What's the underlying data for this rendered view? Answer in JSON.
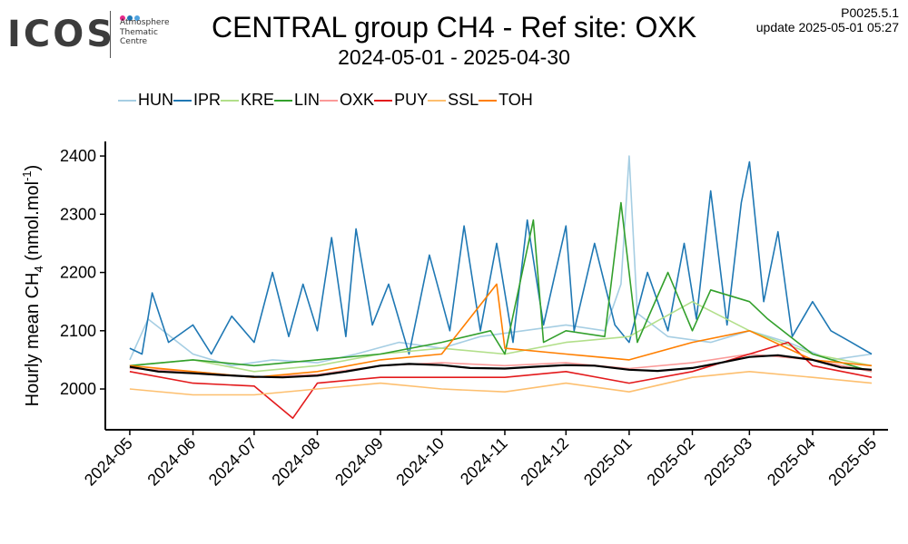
{
  "logo": {
    "text": "ICOS",
    "subtitle_lines": [
      "Atmosphere",
      "Thematic",
      "Centre"
    ],
    "dot_colors": [
      "#e7298a",
      "#1f78b4",
      "#4fa3e0"
    ]
  },
  "header": {
    "title": "CENTRAL group CH4 - Ref site: OXK",
    "subtitle": "2024-05-01 - 2025-04-30",
    "version": "P0025.5.1",
    "update": "update  2025-05-01 05:27"
  },
  "chart_data": {
    "type": "line",
    "title": "CENTRAL group CH4 - Ref site: OXK",
    "subtitle": "2024-05-01 - 2025-04-30",
    "ylabel": "Hourly mean CH4 (nmol.mol-1)",
    "ylabel_parts": {
      "pre": "Hourly mean CH",
      "sub": "4",
      "mid": " (nmol.mol",
      "sup": "-1",
      "post": ")"
    },
    "ylim": [
      1930,
      2425
    ],
    "yticks": [
      2000,
      2100,
      2200,
      2300,
      2400
    ],
    "xlim": [
      "2024-04-19",
      "2025-05-08"
    ],
    "xticks": [
      "2024-05",
      "2024-06",
      "2024-07",
      "2024-08",
      "2024-09",
      "2024-10",
      "2024-11",
      "2024-12",
      "2025-01",
      "2025-02",
      "2025-03",
      "2025-04",
      "2025-05"
    ],
    "xtick_dates": [
      "2024-05-01",
      "2024-06-01",
      "2024-07-01",
      "2024-08-01",
      "2024-09-01",
      "2024-10-01",
      "2024-11-01",
      "2024-12-01",
      "2025-01-01",
      "2025-02-01",
      "2025-03-01",
      "2025-04-01",
      "2025-05-01"
    ],
    "legend_position": "top-left, above plot",
    "grid": false,
    "series": [
      {
        "name": "HUN",
        "color": "#a6cee3",
        "x": [
          "2024-05-01",
          "2024-05-10",
          "2024-06-01",
          "2024-06-20",
          "2024-07-10",
          "2024-08-01",
          "2024-08-20",
          "2024-09-10",
          "2024-10-01",
          "2024-10-20",
          "2024-11-10",
          "2024-12-01",
          "2024-12-20",
          "2024-12-28",
          "2025-01-01",
          "2025-01-05",
          "2025-01-20",
          "2025-02-10",
          "2025-03-01",
          "2025-03-20",
          "2025-04-10",
          "2025-04-30"
        ],
        "y": [
          2050,
          2120,
          2060,
          2040,
          2050,
          2045,
          2060,
          2080,
          2070,
          2090,
          2100,
          2110,
          2100,
          2180,
          2400,
          2130,
          2090,
          2080,
          2100,
          2080,
          2050,
          2060
        ]
      },
      {
        "name": "IPR",
        "color": "#1f78b4",
        "x": [
          "2024-05-01",
          "2024-05-07",
          "2024-05-12",
          "2024-05-20",
          "2024-06-01",
          "2024-06-10",
          "2024-06-20",
          "2024-07-01",
          "2024-07-10",
          "2024-07-18",
          "2024-07-25",
          "2024-08-01",
          "2024-08-08",
          "2024-08-15",
          "2024-08-20",
          "2024-08-28",
          "2024-09-05",
          "2024-09-15",
          "2024-09-25",
          "2024-10-05",
          "2024-10-12",
          "2024-10-20",
          "2024-10-28",
          "2024-11-05",
          "2024-11-12",
          "2024-11-20",
          "2024-12-01",
          "2024-12-05",
          "2024-12-15",
          "2024-12-25",
          "2025-01-01",
          "2025-01-10",
          "2025-01-20",
          "2025-01-28",
          "2025-02-03",
          "2025-02-10",
          "2025-02-18",
          "2025-02-25",
          "2025-03-01",
          "2025-03-08",
          "2025-03-15",
          "2025-03-22",
          "2025-04-01",
          "2025-04-10",
          "2025-04-20",
          "2025-04-30"
        ],
        "y": [
          2070,
          2060,
          2165,
          2080,
          2110,
          2060,
          2125,
          2080,
          2200,
          2090,
          2180,
          2100,
          2260,
          2090,
          2275,
          2110,
          2180,
          2060,
          2230,
          2100,
          2280,
          2100,
          2250,
          2080,
          2290,
          2110,
          2280,
          2100,
          2250,
          2110,
          2080,
          2200,
          2100,
          2250,
          2120,
          2340,
          2110,
          2320,
          2390,
          2150,
          2270,
          2090,
          2150,
          2100,
          2080,
          2060
        ]
      },
      {
        "name": "KRE",
        "color": "#b2df8a",
        "x": [
          "2024-05-01",
          "2024-06-01",
          "2024-07-01",
          "2024-08-01",
          "2024-09-01",
          "2024-10-01",
          "2024-11-01",
          "2024-12-01",
          "2025-01-01",
          "2025-02-01",
          "2025-03-01",
          "2025-04-01",
          "2025-04-30"
        ],
        "y": [
          2040,
          2050,
          2030,
          2040,
          2060,
          2070,
          2060,
          2080,
          2090,
          2150,
          2100,
          2060,
          2040
        ]
      },
      {
        "name": "LIN",
        "color": "#33a02c",
        "x": [
          "2024-05-01",
          "2024-06-01",
          "2024-07-01",
          "2024-08-01",
          "2024-09-01",
          "2024-10-01",
          "2024-10-25",
          "2024-11-01",
          "2024-11-15",
          "2024-11-20",
          "2024-12-01",
          "2024-12-20",
          "2024-12-28",
          "2025-01-05",
          "2025-01-20",
          "2025-02-01",
          "2025-02-10",
          "2025-03-01",
          "2025-03-10",
          "2025-04-01",
          "2025-04-30"
        ],
        "y": [
          2040,
          2050,
          2040,
          2050,
          2060,
          2080,
          2100,
          2060,
          2290,
          2080,
          2100,
          2090,
          2320,
          2080,
          2200,
          2100,
          2170,
          2150,
          2120,
          2060,
          2030
        ]
      },
      {
        "name": "OXK",
        "color": "#fb9a99",
        "x": [
          "2024-05-01",
          "2024-06-01",
          "2024-07-01",
          "2024-08-01",
          "2024-09-01",
          "2024-10-01",
          "2024-11-01",
          "2024-12-01",
          "2025-01-01",
          "2025-02-01",
          "2025-03-01",
          "2025-04-01",
          "2025-04-30"
        ],
        "y": [
          2035,
          2030,
          2020,
          2025,
          2040,
          2045,
          2040,
          2045,
          2035,
          2045,
          2060,
          2050,
          2030
        ]
      },
      {
        "name": "PUY",
        "color": "#e31a1c",
        "x": [
          "2024-05-01",
          "2024-06-01",
          "2024-07-01",
          "2024-07-20",
          "2024-08-01",
          "2024-09-01",
          "2024-10-01",
          "2024-11-01",
          "2024-12-01",
          "2025-01-01",
          "2025-02-01",
          "2025-03-01",
          "2025-03-20",
          "2025-04-01",
          "2025-04-30"
        ],
        "y": [
          2030,
          2010,
          2005,
          1950,
          2010,
          2020,
          2020,
          2020,
          2030,
          2010,
          2030,
          2060,
          2080,
          2040,
          2020
        ]
      },
      {
        "name": "SSL",
        "color": "#fdbf6f",
        "x": [
          "2024-05-01",
          "2024-06-01",
          "2024-07-01",
          "2024-08-01",
          "2024-09-01",
          "2024-10-01",
          "2024-11-01",
          "2024-12-01",
          "2025-01-01",
          "2025-02-01",
          "2025-03-01",
          "2025-04-01",
          "2025-04-30"
        ],
        "y": [
          2000,
          1990,
          1990,
          2000,
          2010,
          2000,
          1995,
          2010,
          1995,
          2020,
          2030,
          2020,
          2010
        ]
      },
      {
        "name": "TOH",
        "color": "#ff7f00",
        "x": [
          "2024-05-01",
          "2024-06-01",
          "2024-07-01",
          "2024-08-01",
          "2024-09-01",
          "2024-10-01",
          "2024-10-28",
          "2024-11-01",
          "2024-12-01",
          "2025-01-01",
          "2025-02-01",
          "2025-03-01",
          "2025-04-01",
          "2025-04-30"
        ],
        "y": [
          2040,
          2030,
          2020,
          2030,
          2050,
          2060,
          2180,
          2070,
          2060,
          2050,
          2080,
          2100,
          2050,
          2040
        ]
      },
      {
        "name": "",
        "color": "#000000",
        "style": "smooth",
        "x": [
          "2024-05-01",
          "2024-05-15",
          "2024-06-01",
          "2024-06-15",
          "2024-07-01",
          "2024-07-15",
          "2024-08-01",
          "2024-08-15",
          "2024-09-01",
          "2024-09-15",
          "2024-10-01",
          "2024-10-15",
          "2024-11-01",
          "2024-11-15",
          "2024-12-01",
          "2024-12-15",
          "2025-01-01",
          "2025-01-15",
          "2025-02-01",
          "2025-02-15",
          "2025-03-01",
          "2025-03-15",
          "2025-04-01",
          "2025-04-15",
          "2025-04-30"
        ],
        "y": [
          2038,
          2030,
          2027,
          2024,
          2021,
          2020,
          2023,
          2030,
          2040,
          2043,
          2041,
          2036,
          2035,
          2038,
          2041,
          2040,
          2033,
          2031,
          2036,
          2045,
          2055,
          2058,
          2050,
          2037,
          2033
        ]
      }
    ]
  }
}
